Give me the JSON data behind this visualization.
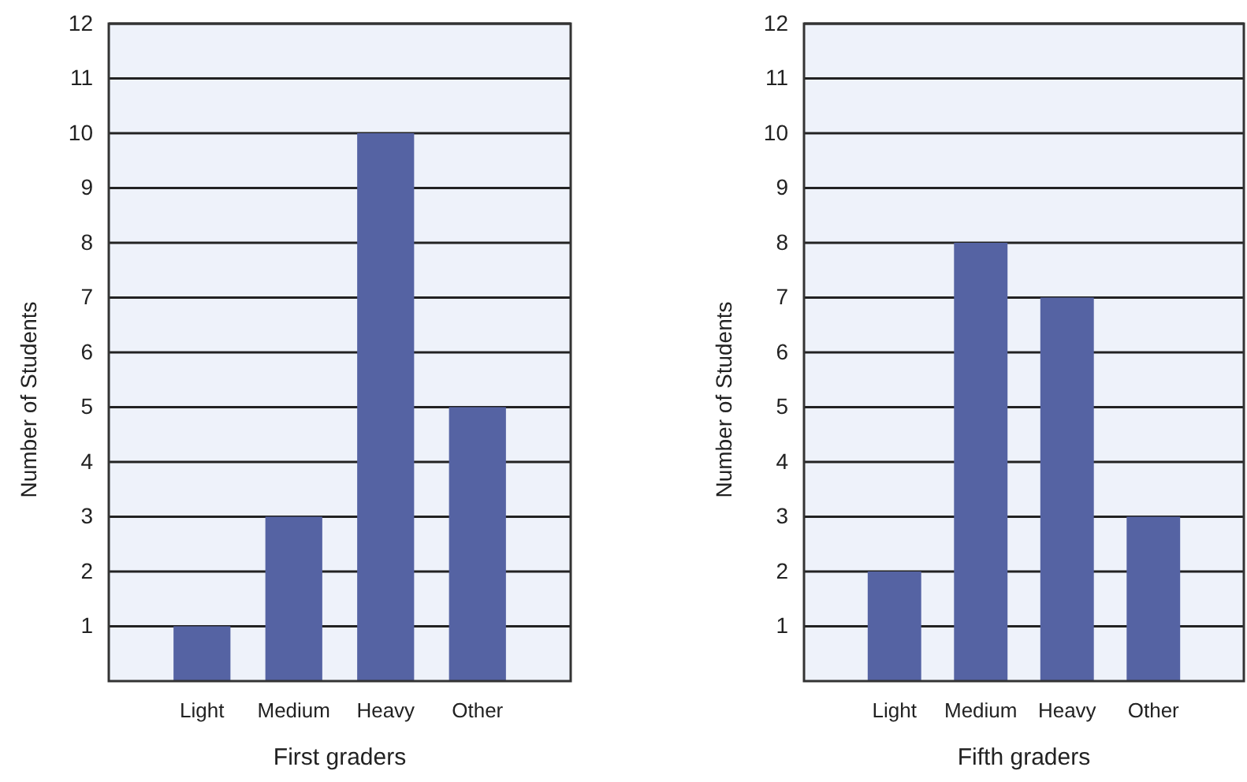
{
  "chart_data": [
    {
      "type": "bar",
      "xlabel": "First graders",
      "ylabel": "Number of Students",
      "categories": [
        "Light",
        "Medium",
        "Heavy",
        "Other"
      ],
      "values": [
        1,
        3,
        10,
        5
      ],
      "color": "#5563a3",
      "ylim": [
        0,
        12
      ],
      "yticks": [
        1,
        2,
        3,
        4,
        5,
        6,
        7,
        8,
        9,
        10,
        11,
        12
      ],
      "grid": "y"
    },
    {
      "type": "bar",
      "xlabel": "Fifth graders",
      "ylabel": "Number of Students",
      "categories": [
        "Light",
        "Medium",
        "Heavy",
        "Other"
      ],
      "values": [
        2,
        8,
        7,
        3
      ],
      "color": "#5563a3",
      "ylim": [
        0,
        12
      ],
      "yticks": [
        1,
        2,
        3,
        4,
        5,
        6,
        7,
        8,
        9,
        10,
        11,
        12
      ],
      "grid": "y"
    }
  ]
}
